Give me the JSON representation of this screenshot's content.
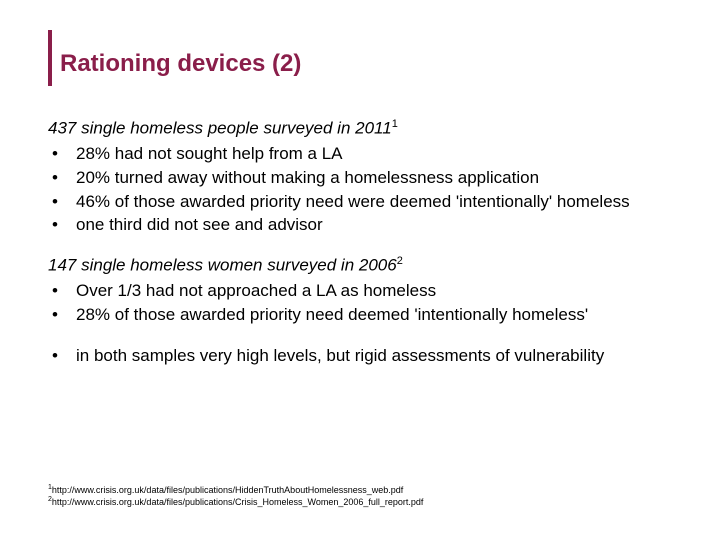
{
  "title": "Rationing devices (2)",
  "accent_color": "#8a1e4a",
  "text_color": "#000000",
  "background_color": "#ffffff",
  "section1": {
    "intro": "437 single homeless people surveyed in 2011",
    "intro_sup": "1",
    "bullets": [
      "28% had not sought help from a LA",
      "20% turned away without making a homelessness application",
      "46% of those awarded priority need were deemed 'intentionally' homeless",
      "one third did not see and advisor"
    ]
  },
  "section2": {
    "intro": "147 single homeless women surveyed in 2006",
    "intro_sup": "2",
    "bullets": [
      "Over 1/3 had not approached a LA as homeless",
      "28% of those awarded priority need deemed 'intentionally homeless'"
    ]
  },
  "section3": {
    "bullets": [
      "in both samples very high levels, but rigid assessments of vulnerability"
    ]
  },
  "footnotes": [
    {
      "num": "1",
      "text": "http://www.crisis.org.uk/data/files/publications/HiddenTruthAboutHomelessness_web.pdf"
    },
    {
      "num": "2",
      "text": "http://www.crisis.org.uk/data/files/publications/Crisis_Homeless_Women_2006_full_report.pdf"
    }
  ],
  "typography": {
    "title_fontsize": 24,
    "body_fontsize": 17,
    "footnote_fontsize": 9
  }
}
